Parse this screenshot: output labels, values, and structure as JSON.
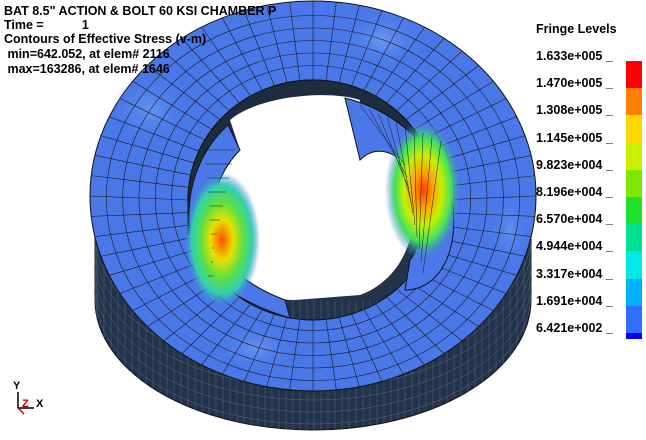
{
  "header": {
    "title": "BAT 8.5\" ACTION & BOLT 60 KSI CHAMBER P",
    "time": "Time =           1",
    "contours": "Contours of Effective Stress (v-m)",
    "min": " min=642.052, at elem# 2116",
    "max": " max=163286, at elem# 1646"
  },
  "legend": {
    "title": "Fringe Levels",
    "levels": [
      "1.633e+005 _",
      "1.470e+005 _",
      "1.308e+005 _",
      "1.145e+005 _",
      "9.823e+004 _",
      "8.196e+004 _",
      "6.570e+004 _",
      "4.944e+004 _",
      "3.317e+004 _",
      "1.691e+004 _",
      "6.421e+002 _"
    ],
    "colors": [
      "#ff0000",
      "#ff7f00",
      "#ffd700",
      "#c8f000",
      "#80e800",
      "#20e030",
      "#00e090",
      "#00e8e8",
      "#00b0ff",
      "#3070ff",
      "#0000ff"
    ]
  },
  "triad": {
    "y": "Y",
    "z": "Z",
    "x": "X"
  },
  "colors": {
    "mesh_base": "#4a78e8",
    "mesh_light": "#5a8cf0",
    "side_dark": "#22334a",
    "mesh_line": "#1a1a1a"
  }
}
